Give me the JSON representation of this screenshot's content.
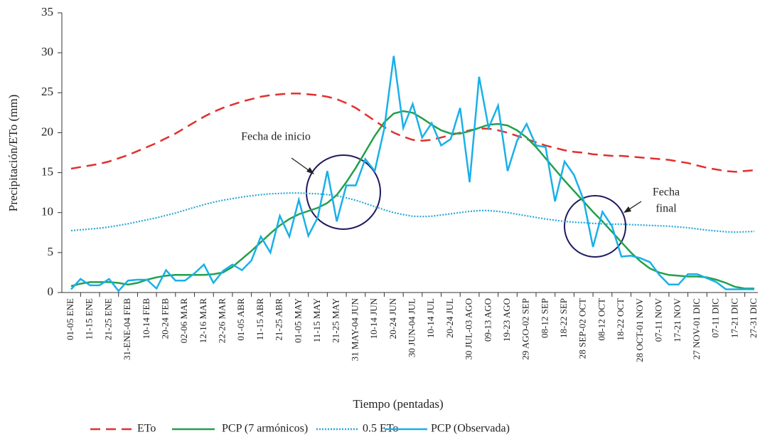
{
  "chart_data": {
    "type": "line",
    "y_label": "Precipitación/ETo (mm)",
    "x_label": "Tiempo (pentadas)",
    "categories": [
      "01-05 ENE",
      null,
      "11-15 ENE",
      null,
      "21-25 ENE",
      null,
      "31-ENE-04 FEB",
      null,
      "10-14 FEB",
      null,
      "20-24 FEB",
      null,
      "02-06 MAR",
      null,
      "12-16 MAR",
      null,
      "22-26 MAR",
      null,
      "01-05 ABR",
      null,
      "11-15 ABR",
      null,
      "21-25 ABR",
      null,
      "01-05 MAY",
      null,
      "11-15 MAY",
      null,
      "21-25 MAY",
      null,
      "31 MAY-04 JUN",
      null,
      "10-14 JUN",
      null,
      "20-24 JUN",
      null,
      "30 JUN-04 JUL",
      null,
      "10-14 JUL",
      null,
      "20-24 JUL",
      null,
      "30 JUL-03 AGO",
      null,
      "09-13 AGO",
      null,
      "19-23 AGO",
      null,
      "29 AGO-02 SEP",
      null,
      "08-12 SEP",
      null,
      "18-22 SEP",
      null,
      "28 SEP-02 OCT",
      null,
      "08-12 OCT",
      null,
      "18-22 OCT",
      null,
      "28 OCT-01 NOV",
      null,
      "07-11 NOV",
      null,
      "17-21 NOV",
      null,
      "27 NOV-01 DIC",
      null,
      "07-11 DIC",
      null,
      "17-21 DIC",
      null,
      "27-31 DIC"
    ],
    "ylim": [
      0,
      35
    ],
    "yticks": [
      0,
      5,
      10,
      15,
      20,
      25,
      30,
      35
    ],
    "series": [
      {
        "name": "ETo",
        "color": "#e0312f",
        "style": "dashed",
        "values": [
          15.5,
          15.7,
          15.9,
          16.1,
          16.4,
          16.8,
          17.2,
          17.7,
          18.2,
          18.7,
          19.3,
          19.9,
          20.6,
          21.3,
          22.0,
          22.6,
          23.1,
          23.5,
          23.9,
          24.2,
          24.5,
          24.7,
          24.8,
          24.9,
          24.9,
          24.8,
          24.7,
          24.5,
          24.2,
          23.7,
          23.1,
          22.3,
          21.5,
          20.7,
          20.0,
          19.5,
          19.1,
          19.0,
          19.1,
          19.4,
          19.7,
          20.0,
          20.3,
          20.5,
          20.5,
          20.3,
          20.0,
          19.6,
          19.2,
          18.8,
          18.4,
          18.1,
          17.8,
          17.6,
          17.5,
          17.3,
          17.2,
          17.1,
          17.1,
          17.0,
          16.9,
          16.8,
          16.7,
          16.6,
          16.4,
          16.2,
          15.9,
          15.6,
          15.4,
          15.2,
          15.1,
          15.2,
          15.3
        ]
      },
      {
        "name": "PCP (7 armónicos)",
        "color": "#22a04b",
        "style": "solid",
        "values": [
          0.8,
          1.1,
          1.3,
          1.3,
          1.3,
          1.2,
          1.0,
          1.2,
          1.6,
          1.9,
          2.1,
          2.2,
          2.2,
          2.2,
          2.2,
          2.3,
          2.5,
          3.2,
          4.2,
          5.2,
          6.3,
          7.4,
          8.4,
          9.2,
          9.8,
          10.2,
          10.6,
          11.2,
          12.2,
          13.8,
          15.6,
          17.6,
          19.6,
          21.3,
          22.4,
          22.7,
          22.5,
          21.8,
          21.0,
          20.3,
          19.9,
          19.9,
          20.2,
          20.6,
          21.0,
          21.1,
          20.9,
          20.3,
          19.4,
          18.2,
          16.8,
          15.4,
          14.0,
          12.7,
          11.4,
          10.1,
          8.9,
          7.6,
          6.3,
          5.0,
          3.9,
          3.0,
          2.5,
          2.2,
          2.1,
          2.0,
          2.0,
          1.9,
          1.6,
          1.2,
          0.7,
          0.5,
          0.5
        ]
      },
      {
        "name": "0.5 ETo",
        "color": "#2aa8d8",
        "style": "dotted",
        "values": [
          7.75,
          7.85,
          7.95,
          8.05,
          8.2,
          8.4,
          8.6,
          8.85,
          9.1,
          9.35,
          9.65,
          9.95,
          10.3,
          10.65,
          11.0,
          11.3,
          11.55,
          11.75,
          11.95,
          12.1,
          12.25,
          12.35,
          12.4,
          12.45,
          12.45,
          12.4,
          12.35,
          12.25,
          12.1,
          11.85,
          11.55,
          11.15,
          10.75,
          10.35,
          10.0,
          9.75,
          9.55,
          9.5,
          9.55,
          9.7,
          9.85,
          10.0,
          10.15,
          10.25,
          10.25,
          10.15,
          10.0,
          9.8,
          9.6,
          9.4,
          9.2,
          9.05,
          8.9,
          8.8,
          8.75,
          8.65,
          8.6,
          8.55,
          8.55,
          8.5,
          8.45,
          8.4,
          8.35,
          8.3,
          8.2,
          8.1,
          7.95,
          7.8,
          7.7,
          7.6,
          7.55,
          7.6,
          7.65
        ]
      },
      {
        "name": "PCP (Observada)",
        "color": "#1ab0e8",
        "style": "solid",
        "values": [
          0.4,
          1.7,
          0.9,
          0.9,
          1.7,
          0.2,
          1.5,
          1.6,
          1.6,
          0.5,
          2.8,
          1.5,
          1.5,
          2.4,
          3.5,
          1.2,
          2.7,
          3.5,
          2.8,
          4.0,
          7.0,
          5.0,
          9.6,
          7.0,
          11.6,
          7.1,
          9.4,
          15.2,
          8.9,
          13.4,
          13.4,
          16.7,
          15.2,
          20.5,
          29.6,
          20.6,
          23.6,
          19.4,
          21.2,
          18.4,
          19.2,
          23.1,
          13.8,
          27.0,
          20.6,
          23.4,
          15.2,
          19.0,
          21.1,
          18.4,
          18.2,
          11.4,
          16.4,
          14.7,
          11.6,
          5.7,
          10.1,
          8.3,
          4.5,
          4.6,
          4.3,
          3.8,
          2.2,
          1.0,
          1.0,
          2.3,
          2.3,
          1.8,
          1.3,
          0.4,
          0.4,
          0.4,
          0.4
        ]
      }
    ],
    "annotations": [
      {
        "lines": [
          "Fecha de inicio"
        ]
      },
      {
        "lines": [
          "Fecha",
          "final"
        ]
      }
    ]
  }
}
